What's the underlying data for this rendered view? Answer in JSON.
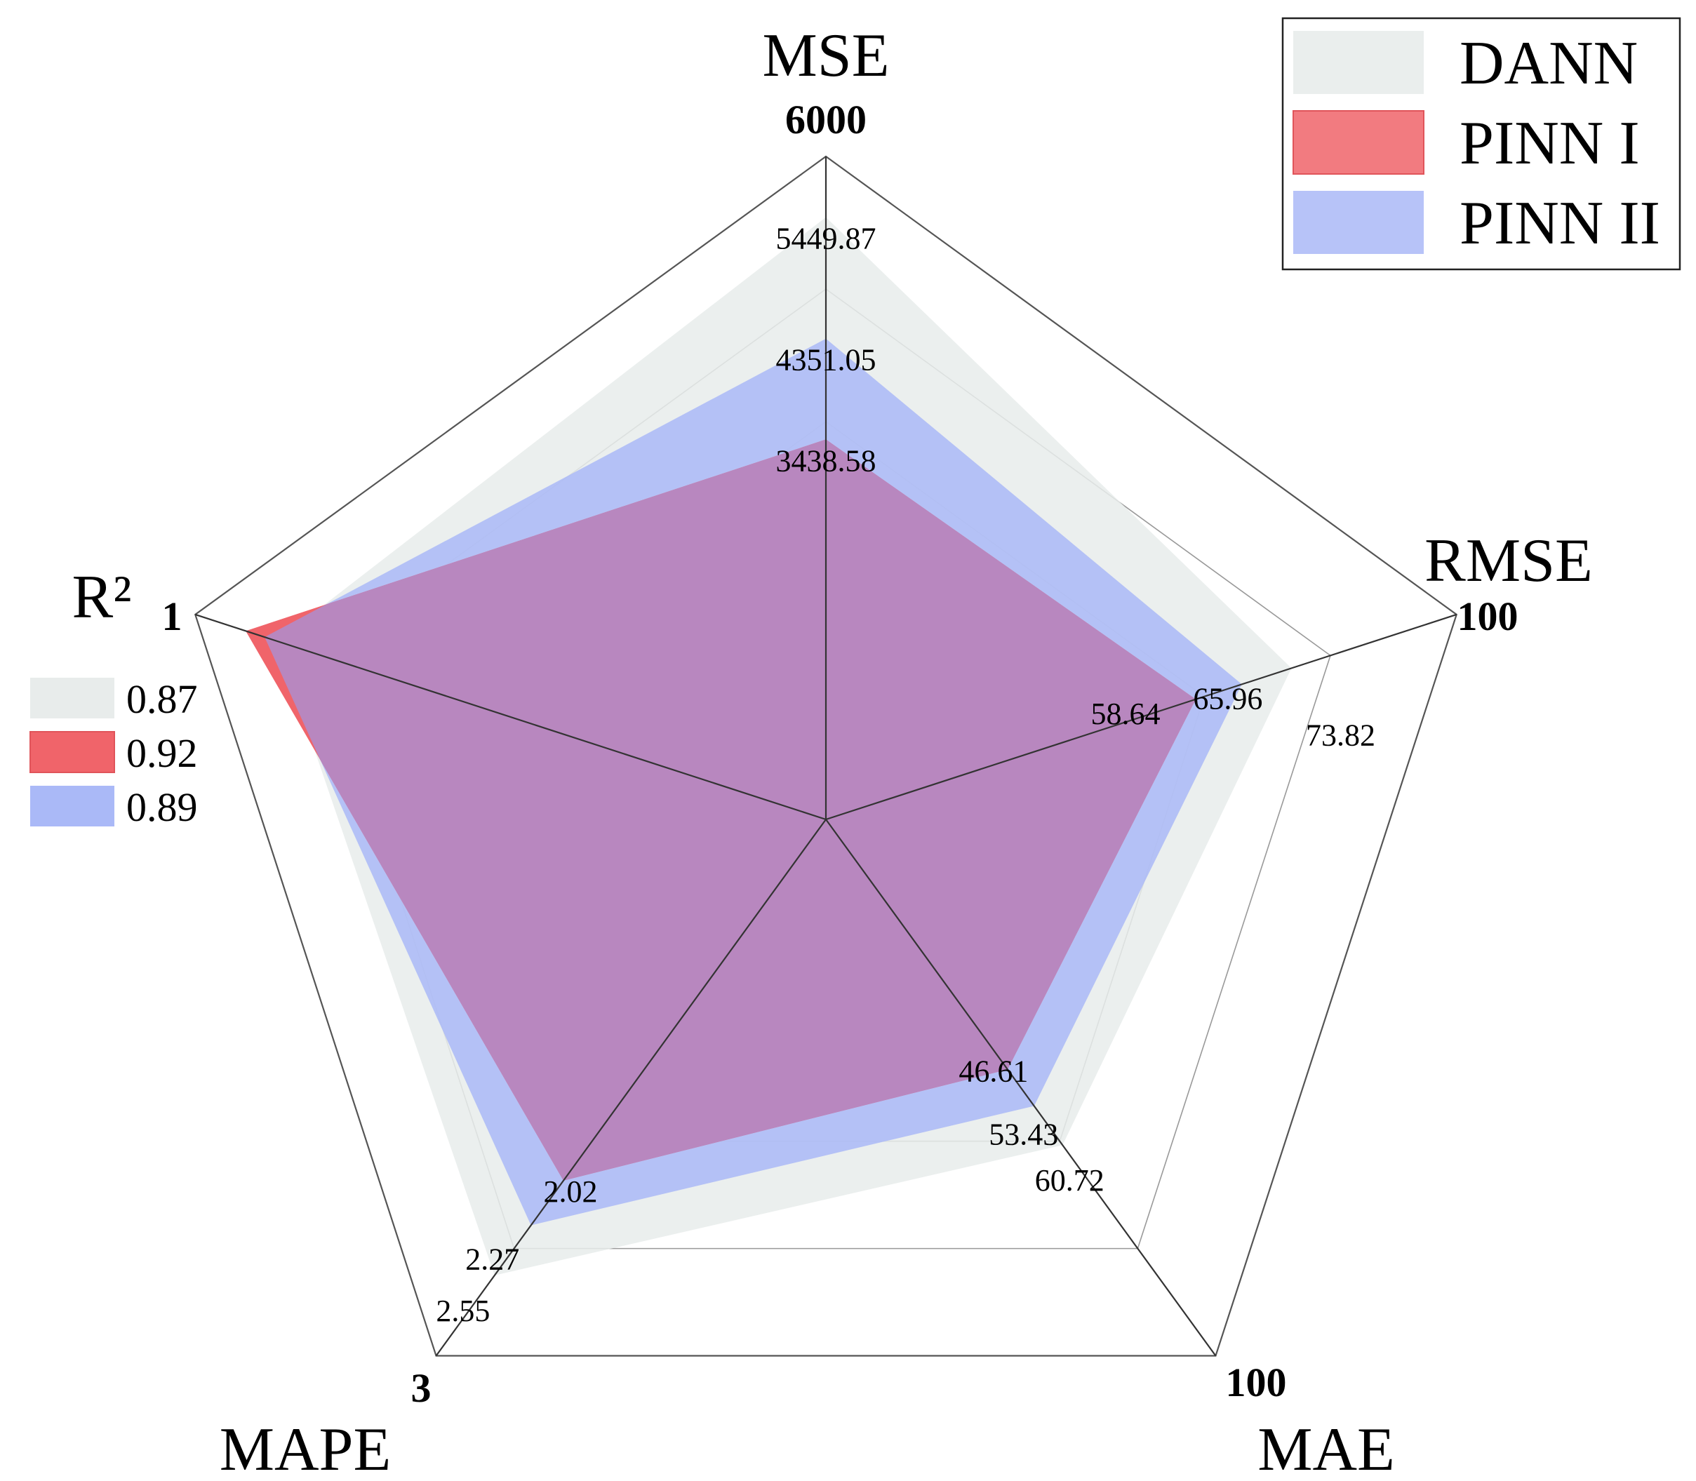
{
  "chart_data": {
    "type": "radar",
    "axes": [
      {
        "name": "MSE",
        "max": "6000",
        "max_value": 6000
      },
      {
        "name": "RMSE",
        "max": "100",
        "max_value": 100
      },
      {
        "name": "MAE",
        "max": "100",
        "max_value": 100
      },
      {
        "name": "MAPE",
        "max": "3",
        "max_value": 3
      },
      {
        "name": "R²",
        "max": "1",
        "max_value": 1
      }
    ],
    "series": [
      {
        "name": "DANN",
        "color": "#e8eceb",
        "values": [
          5449.87,
          73.82,
          60.72,
          2.55,
          0.87
        ],
        "labels": [
          "5449.87",
          "73.82",
          "60.72",
          "2.55",
          "0.87"
        ]
      },
      {
        "name": "PINN II",
        "color": "#aab9f7",
        "values": [
          4351.05,
          65.96,
          53.43,
          2.27,
          0.89
        ],
        "labels": [
          "4351.05",
          "65.96",
          "53.43",
          "2.27",
          "0.89"
        ]
      },
      {
        "name": "PINN I",
        "color": "#f0646a",
        "values": [
          3438.58,
          58.64,
          46.61,
          2.02,
          0.92
        ],
        "labels": [
          "3438.58",
          "58.64",
          "46.61",
          "2.02",
          "0.92"
        ]
      }
    ],
    "overlap_color": "#b887bf",
    "grid_rings": 5,
    "legend_position": "top-right",
    "legend_order": [
      "DANN",
      "PINN I",
      "PINN II"
    ],
    "r2_legend_order": [
      "DANN",
      "PINN I",
      "PINN II"
    ]
  }
}
